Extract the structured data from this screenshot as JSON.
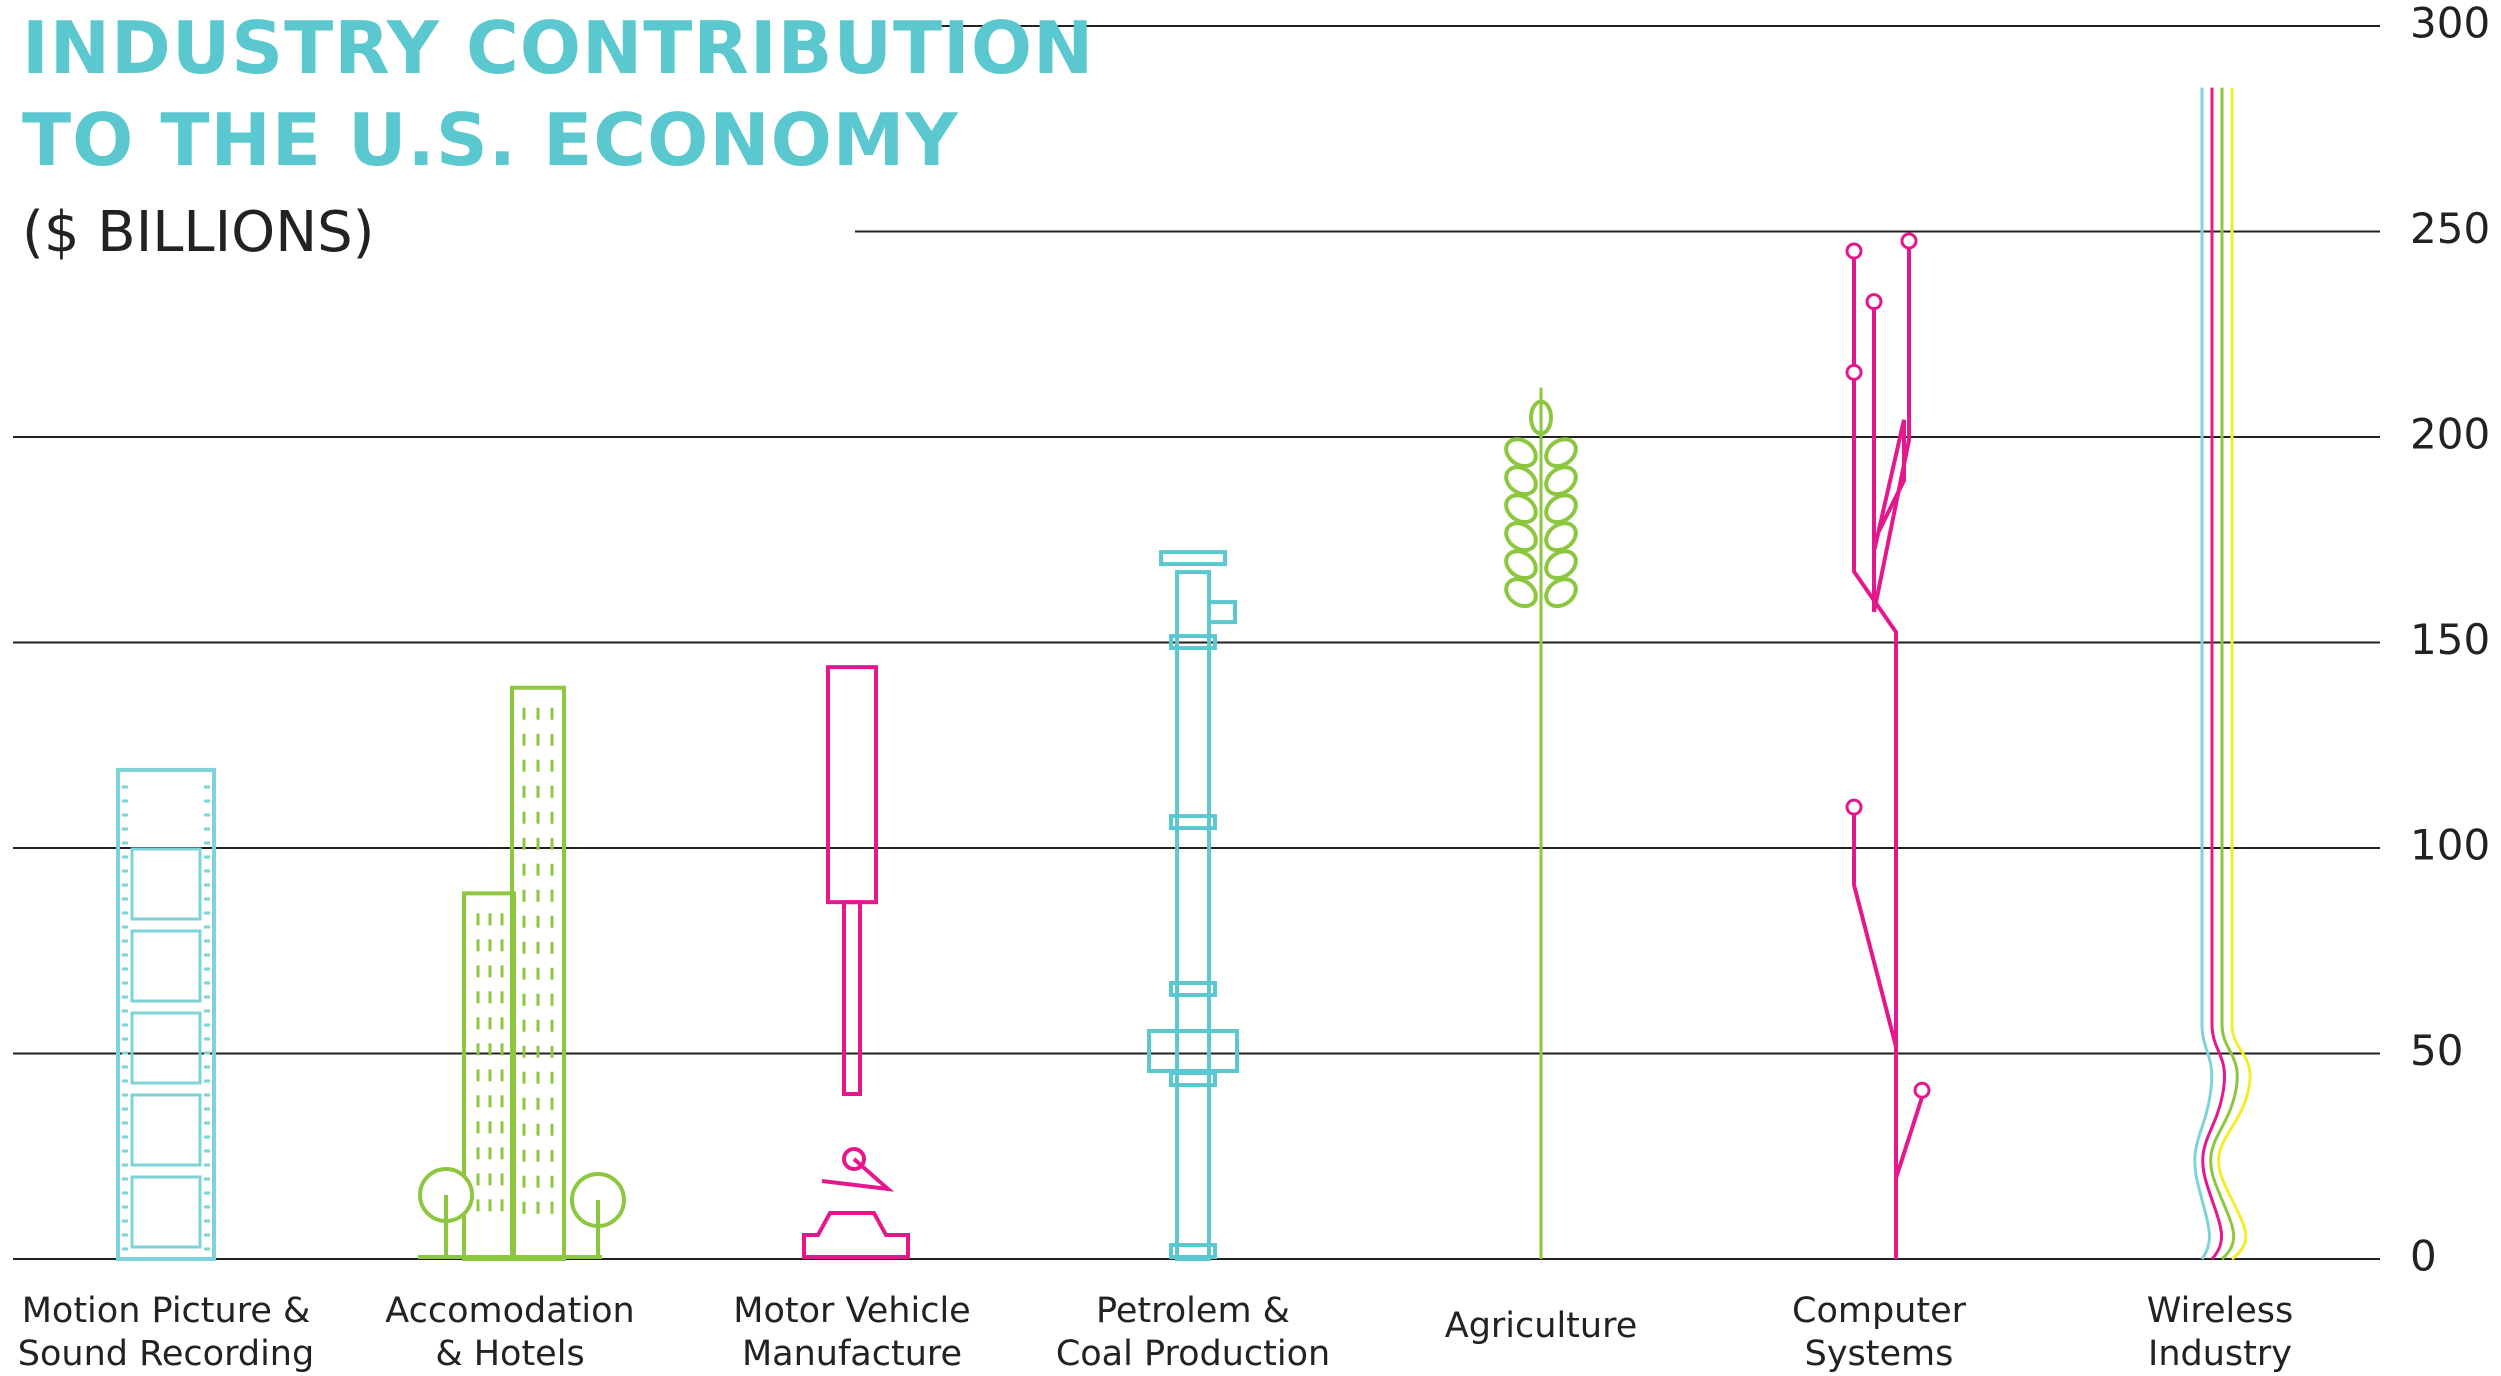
{
  "chart_data": {
    "type": "bar",
    "title": "INDUSTRY CONTRIBUTION\nTO THE U.S. ECONOMY",
    "subtitle": "($ BILLIONS)",
    "categories": [
      "Motion Picture &\nSound Recording",
      "Accomodation\n& Hotels",
      "Motor Vehicle\nManufacture",
      "Petrolem &\nCoal Production",
      "Agriculture",
      "Computer\nSystems",
      "Wireless\nIndustry"
    ],
    "values": [
      119,
      139,
      144,
      172,
      212,
      246,
      285
    ],
    "colors": [
      "#7dd3d8",
      "#8dc63f",
      "#e5178c",
      "#5bc8d0",
      "#8dc63f",
      "#e5178c",
      "#7dd3d8"
    ],
    "ylim": [
      0,
      300
    ],
    "yticks": [
      0,
      50,
      100,
      150,
      200,
      250,
      300
    ],
    "grid": true
  }
}
